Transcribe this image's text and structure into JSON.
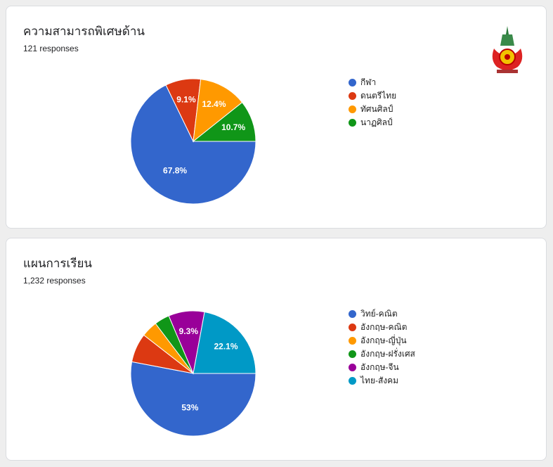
{
  "chart_data": [
    {
      "type": "pie",
      "title": "ความสามารถพิเศษด้าน",
      "responses": "121 responses",
      "categories": [
        "กีฬา",
        "ดนตรีไทย",
        "ทัศนศิลป์",
        "นาฏศิลป์"
      ],
      "values": [
        67.8,
        9.1,
        12.4,
        10.7
      ],
      "labels": [
        "67.8%",
        "9.1%",
        "12.4%",
        "10.7%"
      ],
      "colors": [
        "#3366cc",
        "#dc3912",
        "#ff9900",
        "#109618"
      ],
      "legend": "right"
    },
    {
      "type": "pie",
      "title": "แผนการเรียน",
      "responses": "1,232 responses",
      "categories": [
        "วิทย์-คณิต",
        "อังกฤษ-คณิต",
        "อังกฤษ-ญี่ปุ่น",
        "อังกฤษ-ฝรั่งเศส",
        "อังกฤษ-จีน",
        "ไทย-สังคม"
      ],
      "values": [
        53,
        7.5,
        4.2,
        3.9,
        9.3,
        22.1
      ],
      "labels": [
        "53%",
        "",
        "",
        "",
        "9.3%",
        "22.1%"
      ],
      "colors": [
        "#3366cc",
        "#dc3912",
        "#ff9900",
        "#109618",
        "#990099",
        "#0099c6"
      ],
      "legend": "right"
    }
  ]
}
